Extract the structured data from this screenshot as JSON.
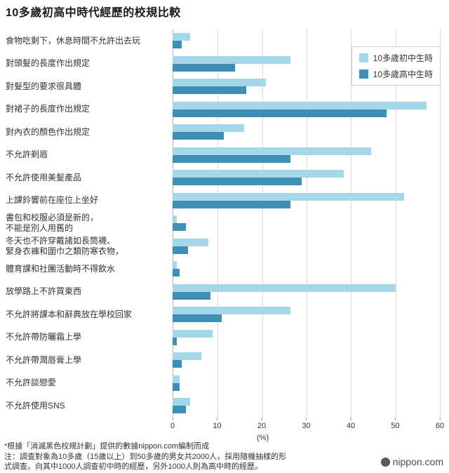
{
  "title": "10多歲初高中時代經歷的校規比較",
  "legend": {
    "junior": "10多歲初中生時",
    "senior": "10多歲高中生時"
  },
  "colors": {
    "junior": "#a6d7e8",
    "senior": "#3f8fb5",
    "grid": "#d9d9d9",
    "axis": "#b3b3b3"
  },
  "chart_data": {
    "type": "bar",
    "orientation": "horizontal",
    "title": "10多歲初高中時代經歷的校規比較",
    "xlabel": "(%)",
    "ylabel": "",
    "xlim": [
      0,
      60
    ],
    "x_ticks": [
      0,
      10,
      20,
      30,
      40,
      50,
      60
    ],
    "grid": true,
    "legend_position": "top-right",
    "categories": [
      [
        "食物吃剩下，休息時間不允許出去玩"
      ],
      [
        "對頭髮的長度作出規定"
      ],
      [
        "對髮型的要求很具體"
      ],
      [
        "對裙子的長度作出規定"
      ],
      [
        "對內衣的顏色作出規定"
      ],
      [
        "不允許剃眉"
      ],
      [
        "不允許使用美髮產品"
      ],
      [
        "上課鈴響前在座位上坐好"
      ],
      [
        "書包和校服必須是新的，",
        "不能是別人用舊的"
      ],
      [
        "冬天也不許穿戴諸如長筒襪、",
        "緊身衣褲和圍巾之類防寒衣物，"
      ],
      [
        "體育課和社團活動時不得飲水"
      ],
      [
        "放學路上不許買東西"
      ],
      [
        "不允許將課本和辭典放在學校回家"
      ],
      [
        "不允許帶防曬霜上學"
      ],
      [
        "不允許帶潤唇膏上學"
      ],
      [
        "不允許談戀愛"
      ],
      [
        "不允許使用SNS"
      ]
    ],
    "series": [
      {
        "name": "10多歲初中生時",
        "values": [
          4,
          26.5,
          21,
          57,
          16,
          44.5,
          38.5,
          52,
          1,
          8,
          1,
          50,
          26.5,
          9,
          6.5,
          1.5,
          4
        ]
      },
      {
        "name": "10多歲高中生時",
        "values": [
          2,
          14,
          16.5,
          48,
          11.5,
          26.5,
          29,
          26.5,
          3,
          3.5,
          1.5,
          8.5,
          11,
          1,
          2,
          1.5,
          3
        ]
      }
    ]
  },
  "footnotes": [
    "*根據「消滅黑色校規計劃」提供的數據nippon.com編制而成",
    "注：調查對象為10多歲（15歲以上）到50多歲的男女共2000人，採用隨機抽樣的形",
    "式調查。向其中1000人調查初中時的經歷，另外1000人則為高中時的經歷。"
  ],
  "logo": "nippon.com"
}
